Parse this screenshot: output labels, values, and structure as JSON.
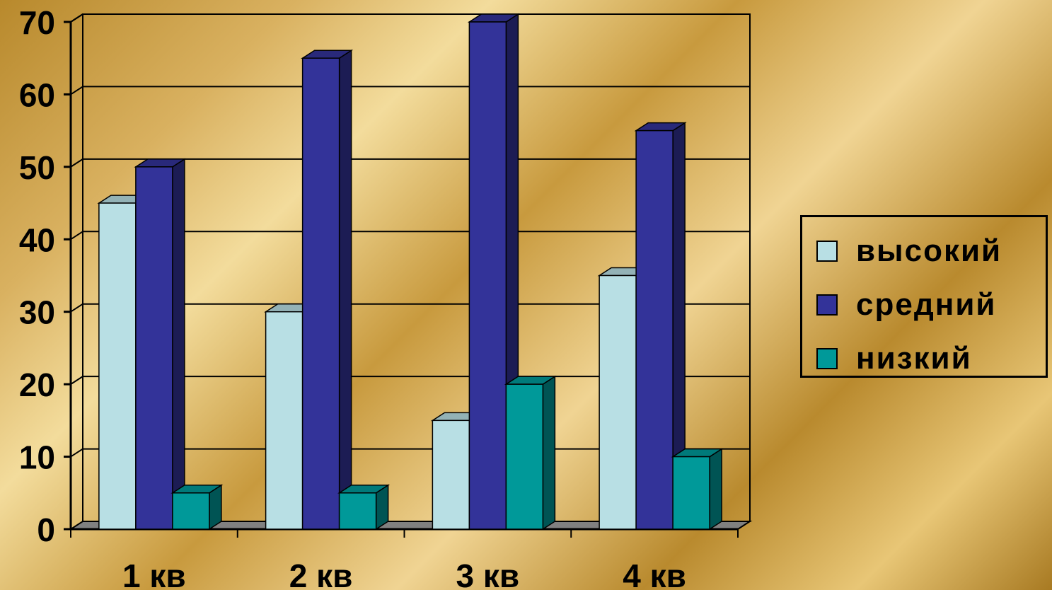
{
  "chart_data": {
    "type": "bar",
    "categories": [
      "1 кв",
      "2 кв",
      "3 кв",
      "4 кв"
    ],
    "series": [
      {
        "name": "высокий",
        "color": "#b8dfe4",
        "values": [
          45,
          30,
          15,
          35
        ]
      },
      {
        "name": "средний",
        "color": "#333399",
        "values": [
          50,
          65,
          70,
          55
        ]
      },
      {
        "name": "низкий",
        "color": "#009999",
        "values": [
          5,
          5,
          20,
          10
        ]
      }
    ],
    "yticks": [
      "0",
      "10",
      "20",
      "30",
      "40",
      "50",
      "60",
      "70"
    ],
    "ylim": [
      0,
      70
    ],
    "grid": true,
    "legend_position": "right",
    "style": "3d-column"
  }
}
